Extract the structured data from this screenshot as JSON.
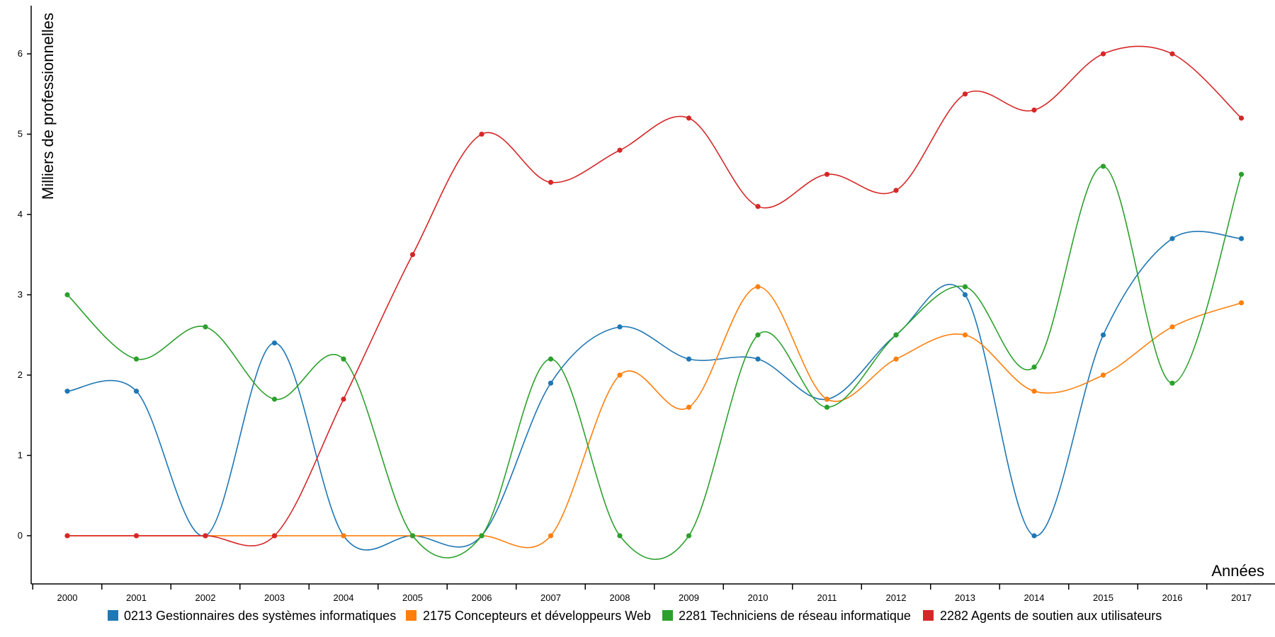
{
  "chart_data": {
    "type": "line",
    "title": "",
    "xlabel": "Années",
    "ylabel": "Milliers de professionnelles",
    "categories": [
      "2000",
      "2001",
      "2002",
      "2003",
      "2004",
      "2005",
      "2006",
      "2007",
      "2008",
      "2009",
      "2010",
      "2011",
      "2012",
      "2013",
      "2014",
      "2015",
      "2016",
      "2017"
    ],
    "y_ticks": [
      "0",
      "1",
      "2",
      "3",
      "4",
      "5",
      "6"
    ],
    "ylim": [
      -0.6,
      6.6
    ],
    "grid": false,
    "legend_position": "bottom",
    "series": [
      {
        "name": "0213 Gestionnaires des systèmes informatiques",
        "color": "#1f77b4",
        "values": [
          1.8,
          1.8,
          0,
          2.4,
          0,
          0,
          0,
          1.9,
          2.6,
          2.2,
          2.2,
          1.7,
          2.5,
          3.0,
          0,
          2.5,
          3.7,
          3.7
        ]
      },
      {
        "name": "2175 Concepteurs et développeurs Web",
        "color": "#ff7f0e",
        "values": [
          0,
          0,
          0,
          0,
          0,
          0,
          0,
          0,
          2.0,
          1.6,
          3.1,
          1.7,
          2.2,
          2.5,
          1.8,
          2.0,
          2.6,
          2.9
        ]
      },
      {
        "name": "2281 Techniciens de réseau informatique",
        "color": "#2ca02c",
        "values": [
          3.0,
          2.2,
          2.6,
          1.7,
          2.2,
          0,
          0,
          2.2,
          0,
          0,
          2.5,
          1.6,
          2.5,
          3.1,
          2.1,
          4.6,
          1.9,
          4.5
        ]
      },
      {
        "name": "2282 Agents de soutien aux utilisateurs",
        "color": "#d62728",
        "values": [
          0,
          0,
          0,
          0,
          1.7,
          3.5,
          5.0,
          4.4,
          4.8,
          5.2,
          4.1,
          4.5,
          4.3,
          5.5,
          5.3,
          6.0,
          6.0,
          5.2
        ]
      }
    ]
  }
}
